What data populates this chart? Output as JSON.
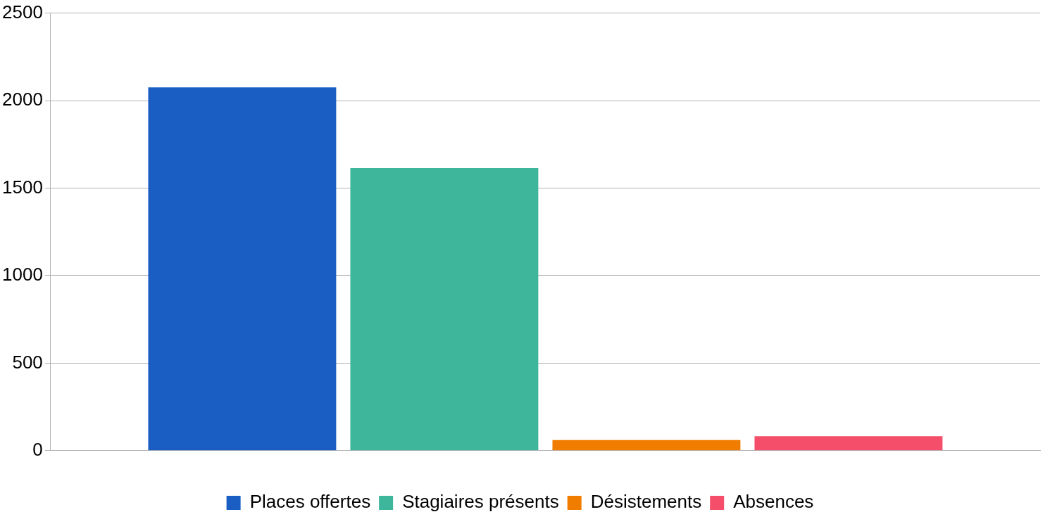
{
  "chart_data": {
    "type": "bar",
    "categories": [
      null
    ],
    "series": [
      {
        "name": "Places offertes",
        "color": "#1a5ec4",
        "values": [
          2075
        ]
      },
      {
        "name": "Stagiaires présents",
        "color": "#3eb69b",
        "values": [
          1614
        ]
      },
      {
        "name": "Désistements",
        "color": "#f07d00",
        "values": [
          60
        ]
      },
      {
        "name": "Absences",
        "color": "#f44e6a",
        "values": [
          83
        ]
      }
    ],
    "ylim": [
      0,
      2500
    ],
    "yticks": [
      0,
      500,
      1000,
      1500,
      2000,
      2500
    ],
    "grid": "y",
    "legend": "bottom"
  }
}
